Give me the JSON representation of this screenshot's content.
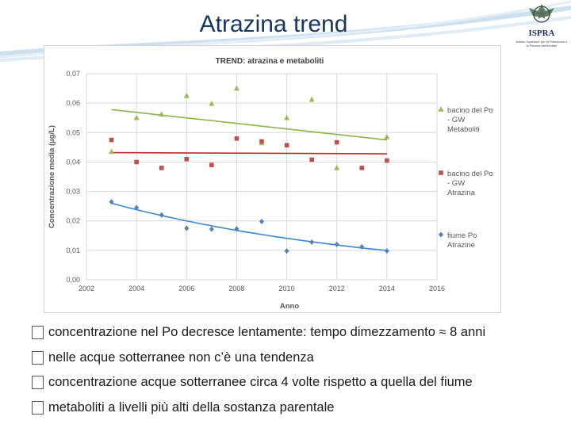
{
  "slide": {
    "title": "Atrazina trend",
    "logo_name": "ISPRA",
    "logo_subtitle": "Istituto Superiore per la Protezione e la Ricerca Ambientale"
  },
  "chart_data": {
    "type": "scatter",
    "title": "TREND: atrazina e metaboliti",
    "xlabel": "Anno",
    "ylabel": "Concentrazione media (µg/L)",
    "xlim": [
      2002,
      2016
    ],
    "ylim": [
      0,
      0.07
    ],
    "xticks": [
      "2002",
      "2004",
      "2006",
      "2008",
      "2010",
      "2012",
      "2014",
      "2016"
    ],
    "yticks": [
      "0,00",
      "0,01",
      "0,02",
      "0,03",
      "0,04",
      "0,05",
      "0,06",
      "0,07"
    ],
    "grid": true,
    "legend_position": "right",
    "series": [
      {
        "name": "bacino del Po - GW Metaboliti",
        "legend_lines": [
          "bacino del Po",
          "- GW",
          "Metaboliti"
        ],
        "marker": "triangle",
        "color": "#9bbb59",
        "trend_color": "#8db444",
        "x": [
          2003,
          2004,
          2005,
          2006,
          2007,
          2008,
          2009,
          2010,
          2011,
          2012,
          2014
        ],
        "y": [
          0.0435,
          0.055,
          0.0562,
          0.0625,
          0.0598,
          0.065,
          0.0465,
          0.055,
          0.0612,
          0.038,
          0.0485
        ],
        "trend": [
          [
            2003,
            0.0578
          ],
          [
            2014,
            0.0475
          ]
        ]
      },
      {
        "name": "bacino del Po - GW Atrazina",
        "legend_lines": [
          "bacino del Po",
          "- GW",
          "Atrazina"
        ],
        "marker": "square",
        "color": "#c0504d",
        "trend_color": "#c0272d",
        "x": [
          2003,
          2004,
          2005,
          2006,
          2007,
          2008,
          2009,
          2010,
          2011,
          2012,
          2013,
          2014
        ],
        "y": [
          0.0475,
          0.04,
          0.038,
          0.041,
          0.039,
          0.048,
          0.047,
          0.0457,
          0.0408,
          0.0467,
          0.038,
          0.0405
        ],
        "trend": [
          [
            2003,
            0.0432
          ],
          [
            2014,
            0.0428
          ]
        ]
      },
      {
        "name": "fiume Po Atrazine",
        "legend_lines": [
          "fiume Po",
          "Atrazine"
        ],
        "marker": "diamond",
        "color": "#4f81bd",
        "trend_color": "#3d86d1",
        "x": [
          2003,
          2004,
          2005,
          2006,
          2007,
          2008,
          2009,
          2010,
          2011,
          2012,
          2013,
          2014
        ],
        "y": [
          0.0265,
          0.0245,
          0.022,
          0.0175,
          0.0172,
          0.0173,
          0.0198,
          0.0098,
          0.0128,
          0.012,
          0.0112,
          0.0098
        ],
        "trend": "exp",
        "trend_a": 0.026,
        "trend_b": -0.0875
      }
    ]
  },
  "bullets": [
    "concentrazione  nel Po decresce lentamente: tempo dimezzamento ≈ 8 anni",
    "nelle acque sotterranee non c’è una tendenza",
    "concentrazione acque sotterranee circa 4 volte rispetto a quella del fiume",
    "metaboliti  a livelli più alti della sostanza parentale"
  ]
}
